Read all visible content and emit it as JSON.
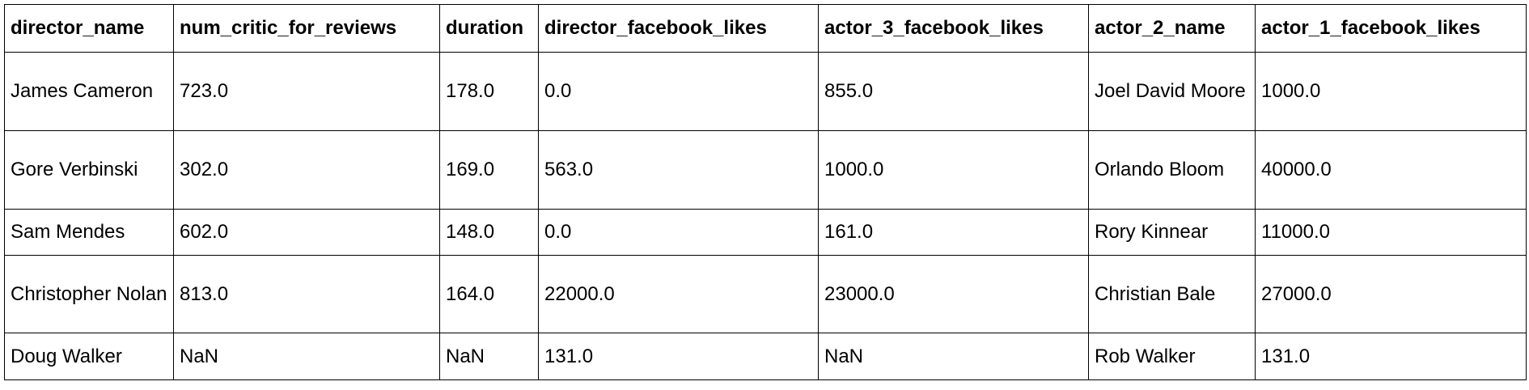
{
  "table": {
    "columns": [
      "director_name",
      "num_critic_for_reviews",
      "duration",
      "director_facebook_likes",
      "actor_3_facebook_likes",
      "actor_2_name",
      "actor_1_facebook_likes"
    ],
    "rows": [
      [
        "James Cameron",
        "723.0",
        "178.0",
        "0.0",
        "855.0",
        "Joel David Moore",
        "1000.0"
      ],
      [
        "Gore Verbinski",
        "302.0",
        "169.0",
        "563.0",
        "1000.0",
        "Orlando Bloom",
        "40000.0"
      ],
      [
        "Sam Mendes",
        "602.0",
        "148.0",
        "0.0",
        "161.0",
        "Rory Kinnear",
        "11000.0"
      ],
      [
        "Christopher Nolan",
        "813.0",
        "164.0",
        "22000.0",
        "23000.0",
        "Christian Bale",
        "27000.0"
      ],
      [
        "Doug Walker",
        "NaN",
        "NaN",
        "131.0",
        "NaN",
        "Rob Walker",
        "131.0"
      ]
    ]
  }
}
